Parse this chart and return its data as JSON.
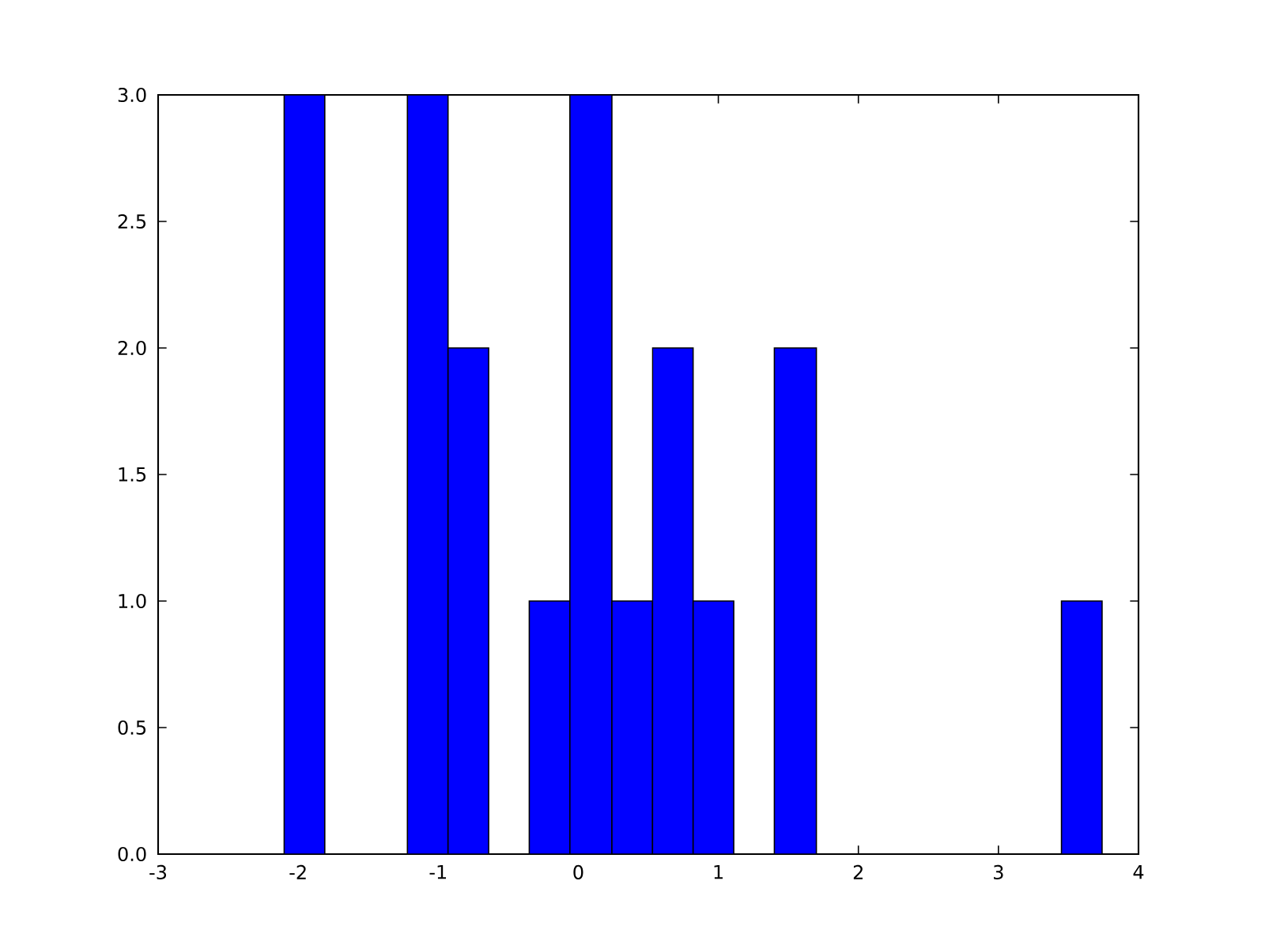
{
  "chart_data": {
    "type": "histogram",
    "bins": [
      -2.1,
      -1.81,
      -1.22,
      -0.93,
      -0.64,
      -0.35,
      -0.06,
      0.24,
      0.53,
      0.82,
      1.11,
      1.4,
      1.7,
      3.45,
      3.74
    ],
    "values": [
      3,
      0,
      3,
      2,
      0,
      1,
      3,
      1,
      2,
      1,
      0,
      2,
      0,
      1
    ],
    "color": "#0000ff",
    "xlim": [
      -3,
      4
    ],
    "xticks": [
      -3,
      -2,
      -1,
      0,
      1,
      2,
      3,
      4
    ],
    "ylim": [
      0,
      3
    ],
    "yticks": [
      {
        "value": 0,
        "label": "0.0"
      },
      {
        "value": 0.5,
        "label": "0.5"
      },
      {
        "value": 1,
        "label": "1.0"
      },
      {
        "value": 1.5,
        "label": "1.5"
      },
      {
        "value": 2,
        "label": "2.0"
      },
      {
        "value": 2.5,
        "label": "2.5"
      },
      {
        "value": 3,
        "label": "3.0"
      }
    ],
    "grid": false
  }
}
